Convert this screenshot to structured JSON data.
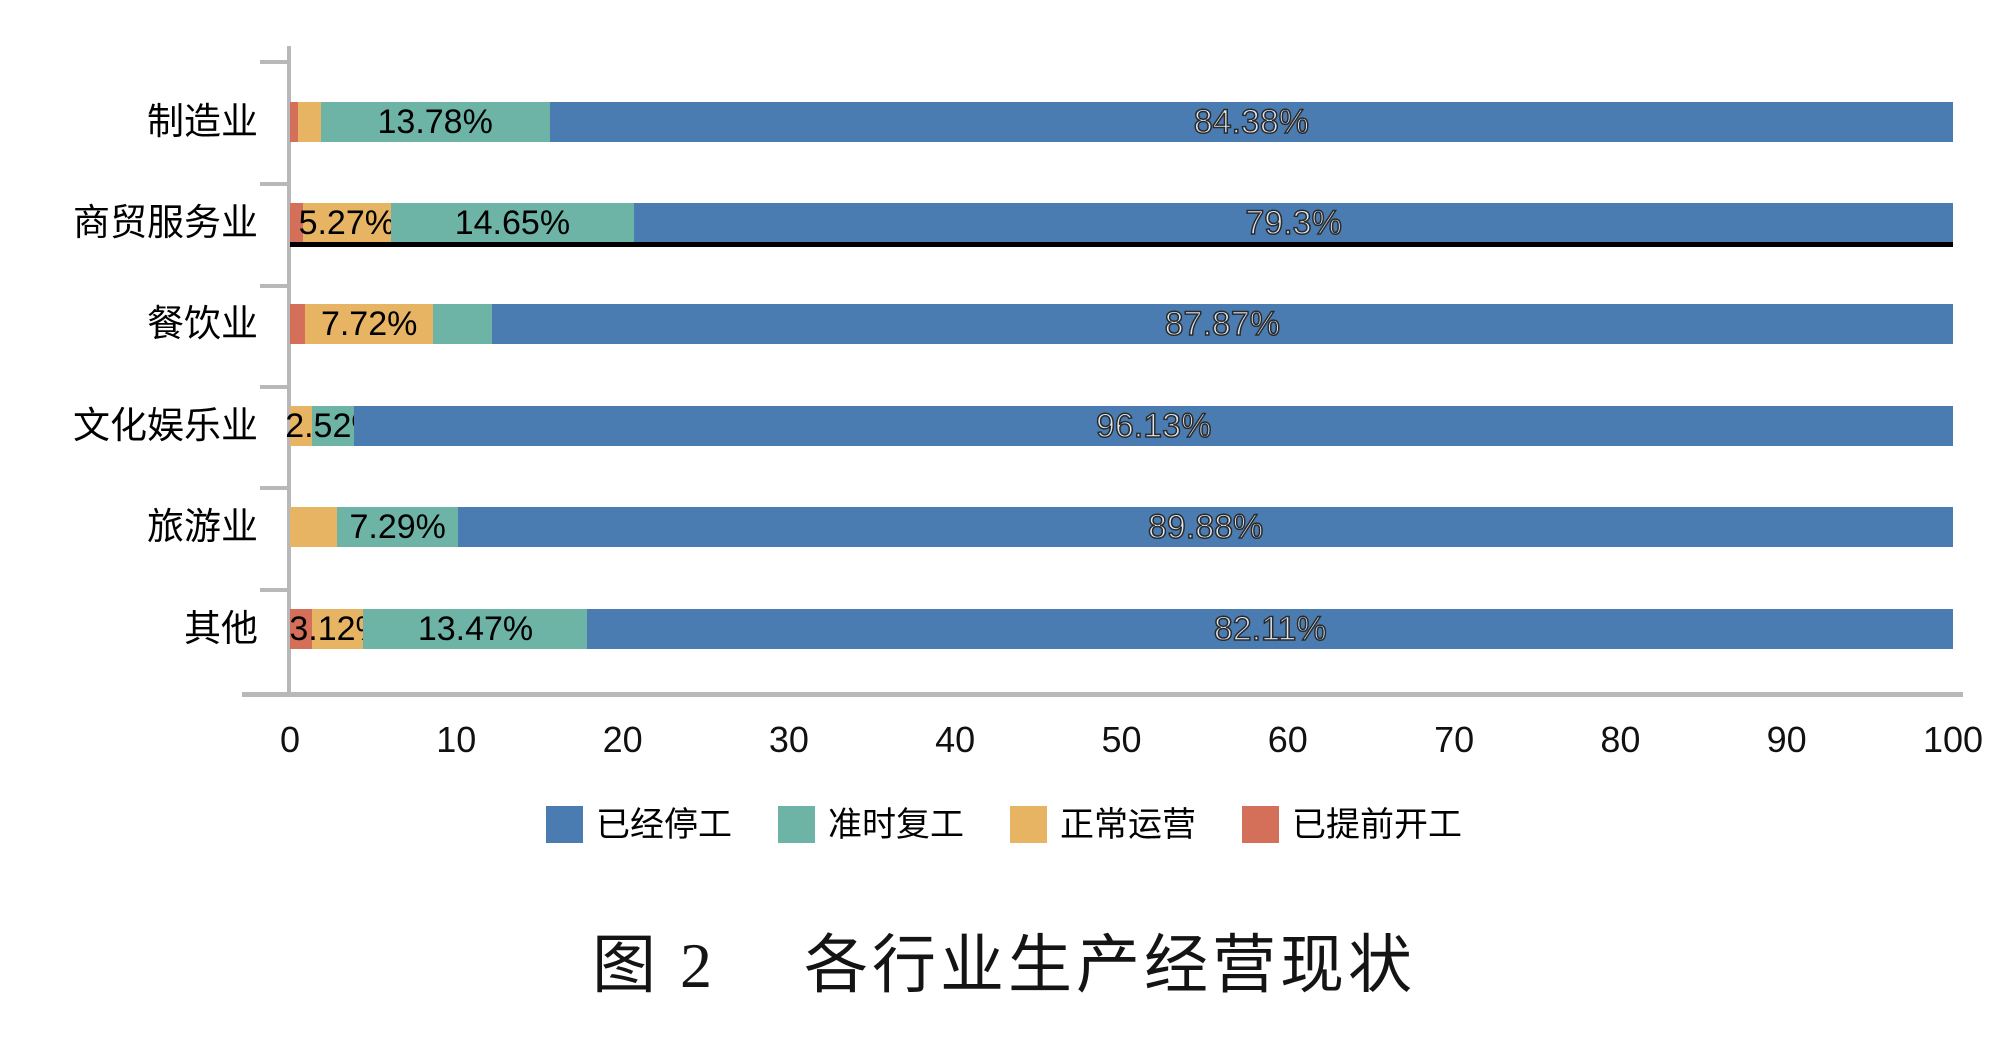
{
  "page": {
    "background": "#ffffff",
    "axis_color": "#b8b8b8"
  },
  "chart_data": {
    "type": "bar",
    "orientation": "horizontal",
    "stacked": true,
    "grid": false,
    "title": "图 2　 各行业生产经营现状",
    "xlabel": "",
    "ylabel": "",
    "xlim": [
      0,
      100
    ],
    "x_ticks": [
      0,
      10,
      20,
      30,
      40,
      50,
      60,
      70,
      80,
      90,
      100
    ],
    "categories": [
      "制造业",
      "商贸服务业",
      "餐饮业",
      "文化娱乐业",
      "旅游业",
      "其他"
    ],
    "series": [
      {
        "name": "已提前开工",
        "color": "#d4705a",
        "label_style": "none",
        "values": [
          0.5,
          0.78,
          0.9,
          0,
          0,
          1.3
        ],
        "labels": [
          "",
          "",
          "",
          "",
          "",
          ""
        ]
      },
      {
        "name": "正常运营",
        "color": "#e6b463",
        "label_style": "solid",
        "values": [
          1.34,
          5.27,
          7.72,
          1.35,
          2.83,
          3.12
        ],
        "labels": [
          "",
          "5.27%",
          "7.72%",
          "",
          "",
          "3.12%"
        ]
      },
      {
        "name": "准时复工",
        "color": "#6db4a6",
        "label_style": "solid",
        "values": [
          13.78,
          14.65,
          3.51,
          2.52,
          7.29,
          13.47
        ],
        "labels": [
          "13.78%",
          "14.65%",
          "",
          "2.52%",
          "7.29%",
          "13.47%"
        ]
      },
      {
        "name": "已经停工",
        "color": "#4b7cb1",
        "label_style": "outline",
        "values": [
          84.38,
          79.3,
          87.87,
          96.13,
          89.88,
          82.11
        ],
        "labels": [
          "84.38%",
          "79.3%",
          "87.87%",
          "96.13%",
          "89.88%",
          "82.11%"
        ]
      }
    ],
    "legend": {
      "position": "bottom",
      "items": [
        {
          "label": "已经停工",
          "color": "#4b7cb1"
        },
        {
          "label": "准时复工",
          "color": "#6db4a6"
        },
        {
          "label": "正常运营",
          "color": "#e6b463"
        },
        {
          "label": "已提前开工",
          "color": "#d4705a"
        }
      ]
    },
    "annotations": [
      {
        "type": "underline",
        "category": "商贸服务业",
        "color": "#000000"
      }
    ]
  }
}
